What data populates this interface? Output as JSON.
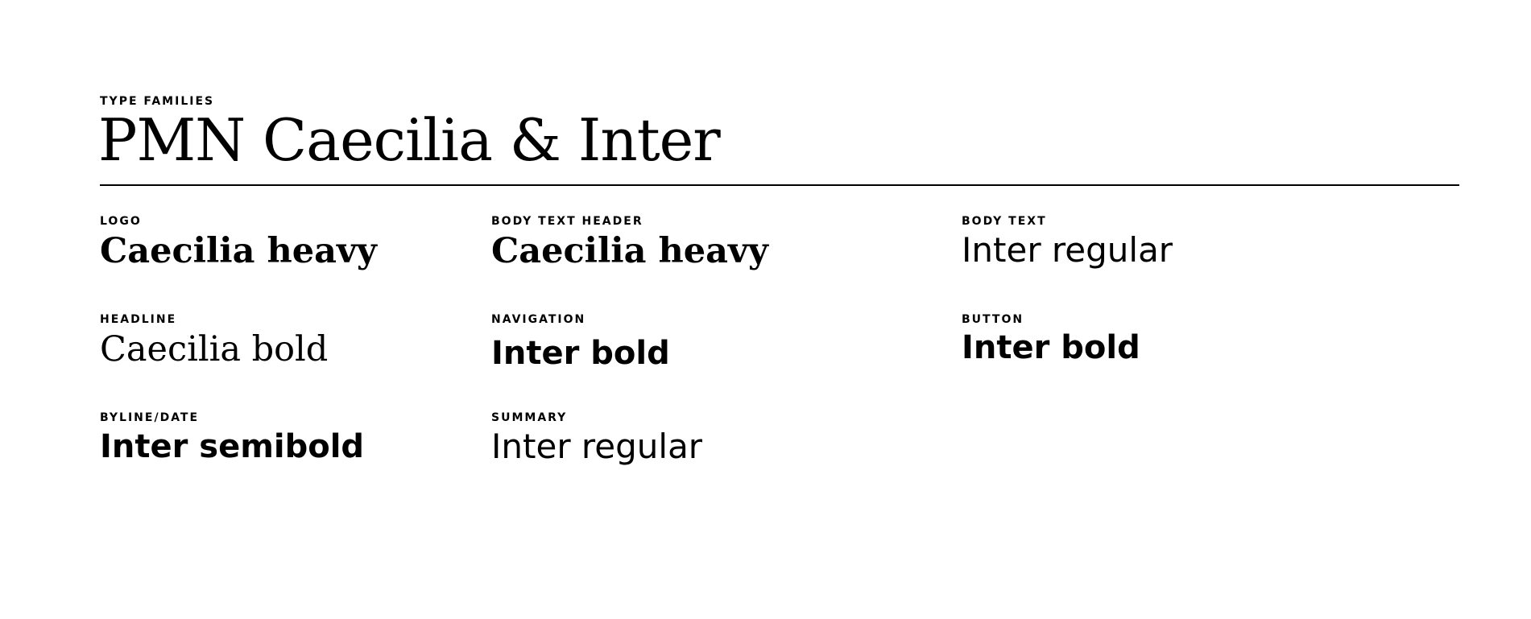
{
  "header": {
    "eyebrow": "TYPE FAMILIES",
    "title": "PMN Caecilia & Inter"
  },
  "specimens": [
    {
      "role": "LOGO",
      "sample": "Caecilia heavy"
    },
    {
      "role": "BODY TEXT HEADER",
      "sample": "Caecilia heavy"
    },
    {
      "role": "BODY TEXT",
      "sample": "Inter regular"
    },
    {
      "role": "HEADLINE",
      "sample": "Caecilia bold"
    },
    {
      "role": "NAVIGATION",
      "sample": "Inter bold"
    },
    {
      "role": "BUTTON",
      "sample": "Inter bold"
    },
    {
      "role": "BYLINE/DATE",
      "sample": "Inter semibold"
    },
    {
      "role": "SUMMARY",
      "sample": "Inter regular"
    }
  ],
  "colors": {
    "text": "#000000",
    "background": "#ffffff",
    "divider": "#000000"
  }
}
